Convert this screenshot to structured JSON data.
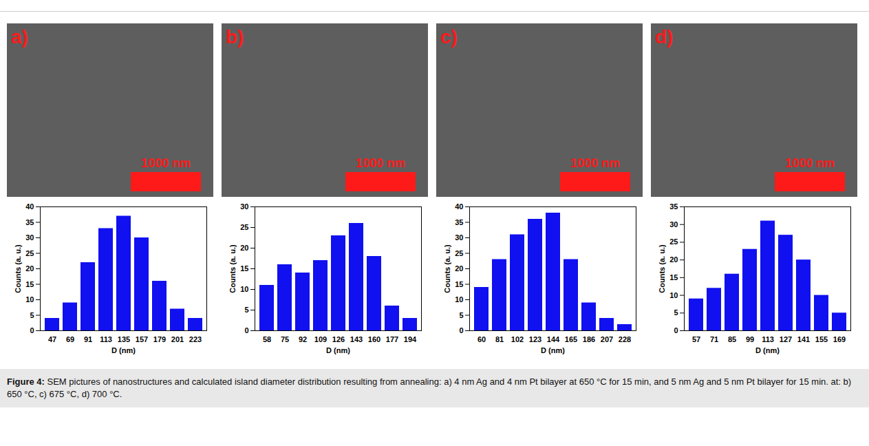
{
  "figure": {
    "caption_label": "Figure 4:",
    "caption": "SEM pictures of nanostructures and calculated island diameter distribution resulting from annealing: a) 4 nm Ag and 4 nm Pt bilayer at 650 °C for 15 min, and 5 nm Ag and 5 nm Pt bilayer for 15 min. at: b) 650 °C, c) 675 °C, d) 700 °C."
  },
  "chart_data": [
    {
      "type": "bar",
      "panel_label": "a)",
      "scale_bar_label": "1000 nm",
      "xlabel": "D (nm)",
      "ylabel": "Counts (a. u.)",
      "color": "#1010f0",
      "categories": [
        47,
        69,
        91,
        113,
        135,
        157,
        179,
        201,
        223
      ],
      "values": [
        4,
        9,
        22,
        33,
        37,
        30,
        16,
        7,
        4
      ],
      "ylim": [
        0,
        40
      ],
      "yticks": [
        0,
        5,
        10,
        15,
        20,
        25,
        30,
        35,
        40
      ]
    },
    {
      "type": "bar",
      "panel_label": "b)",
      "scale_bar_label": "1000 nm",
      "xlabel": "D (nm)",
      "ylabel": "Counts (a. u.)",
      "color": "#1010f0",
      "categories": [
        58,
        75,
        92,
        109,
        126,
        143,
        160,
        177,
        194
      ],
      "values": [
        11,
        16,
        14,
        17,
        23,
        26,
        18,
        6,
        3
      ],
      "ylim": [
        0,
        30
      ],
      "yticks": [
        0,
        5,
        10,
        15,
        20,
        25,
        30
      ]
    },
    {
      "type": "bar",
      "panel_label": "c)",
      "scale_bar_label": "1000 nm",
      "xlabel": "D (nm)",
      "ylabel": "Counts (a. u.)",
      "color": "#1010f0",
      "categories": [
        60,
        81,
        102,
        123,
        144,
        165,
        186,
        207,
        228
      ],
      "values": [
        14,
        23,
        31,
        36,
        38,
        23,
        9,
        4,
        2
      ],
      "ylim": [
        0,
        40
      ],
      "yticks": [
        0,
        5,
        10,
        15,
        20,
        25,
        30,
        35,
        40
      ]
    },
    {
      "type": "bar",
      "panel_label": "d)",
      "scale_bar_label": "1000 nm",
      "xlabel": "D (nm)",
      "ylabel": "Counts (a. u.)",
      "color": "#1010f0",
      "categories": [
        57,
        71,
        85,
        99,
        113,
        127,
        141,
        155,
        169
      ],
      "values": [
        9,
        12,
        16,
        23,
        31,
        27,
        20,
        10,
        5
      ],
      "ylim": [
        0,
        35
      ],
      "yticks": [
        0,
        5,
        10,
        15,
        20,
        25,
        30,
        35
      ]
    }
  ]
}
